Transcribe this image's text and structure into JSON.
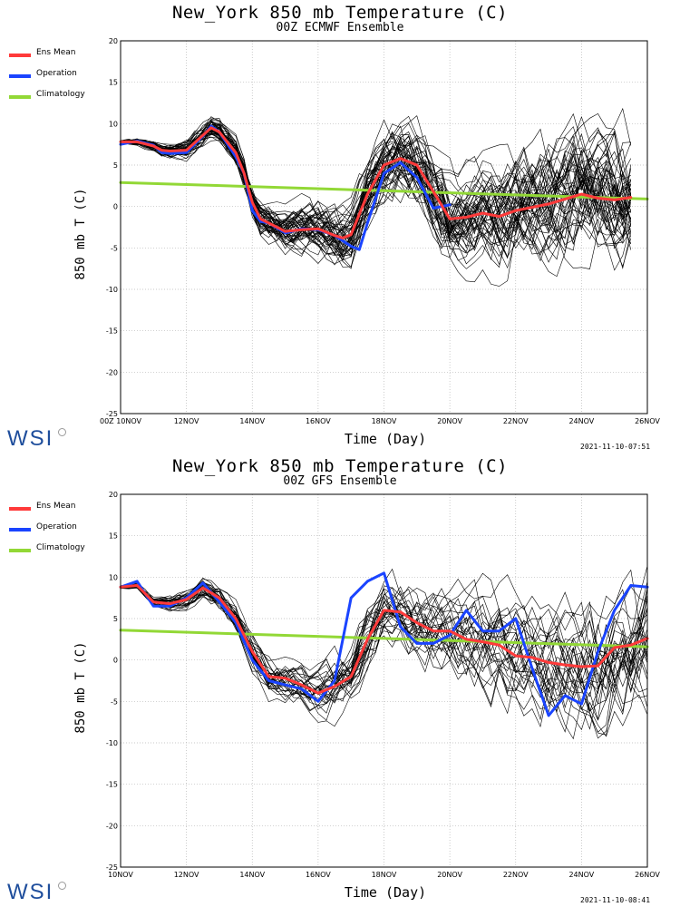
{
  "legend": {
    "items": [
      {
        "label": "Ens Mean",
        "color": "#ff3a3a"
      },
      {
        "label": "Operation",
        "color": "#1a44ff"
      },
      {
        "label": "Climatology",
        "color": "#92d836"
      }
    ]
  },
  "logo_text": "WSI",
  "chart_data": [
    {
      "type": "line",
      "title": "New_York 850 mb Temperature (C)",
      "subtitle": "00Z ECMWF Ensemble",
      "xlabel": "Time (Day)",
      "ylabel": "850 mb T (C)",
      "timestamp": "2021-11-10-07:51",
      "xlim": [
        0,
        16
      ],
      "ylim": [
        -25,
        20
      ],
      "yticks": [
        -25,
        -20,
        -15,
        -10,
        -5,
        0,
        5,
        10,
        15,
        20
      ],
      "xtick_labels": [
        "00Z 10NOV",
        "12NOV",
        "14NOV",
        "16NOV",
        "18NOV",
        "20NOV",
        "22NOV",
        "24NOV",
        "26NOV"
      ],
      "xtick_days": [
        0,
        2,
        4,
        6,
        8,
        10,
        12,
        14,
        16
      ],
      "grid": "dotted",
      "series": [
        {
          "name": "Ens Mean",
          "color": "#ff3a3a",
          "x": [
            0,
            0.5,
            1,
            1.25,
            1.5,
            2,
            2.5,
            2.75,
            3,
            3.5,
            3.75,
            4,
            4.25,
            4.5,
            5,
            5.5,
            6,
            6.5,
            6.75,
            7,
            7.5,
            8,
            8.5,
            9,
            9.5,
            10,
            10.5,
            11,
            11.5,
            12,
            13,
            14,
            14.5,
            15,
            15.5
          ],
          "y": [
            7.8,
            7.8,
            7.3,
            6.8,
            6.7,
            6.8,
            8.6,
            9.5,
            9,
            6.5,
            4,
            0.5,
            -1.5,
            -2,
            -3,
            -2.8,
            -2.7,
            -3.5,
            -3.8,
            -3.4,
            1.5,
            5,
            5.8,
            5,
            1.8,
            -1.5,
            -1.3,
            -0.8,
            -1.2,
            -0.5,
            0.3,
            1.5,
            1,
            0.8,
            1.1
          ]
        },
        {
          "name": "Operation",
          "color": "#1a44ff",
          "x": [
            0,
            0.5,
            1,
            1.25,
            1.5,
            2,
            2.5,
            2.75,
            3,
            3.5,
            3.75,
            4,
            4.25,
            4.5,
            5,
            5.5,
            6,
            6.5,
            7,
            7.25,
            7.5,
            8,
            8.5,
            9,
            9.5,
            10
          ],
          "y": [
            7.5,
            7.9,
            7.4,
            6.5,
            6.4,
            6.5,
            8.5,
            9.7,
            9,
            6,
            4,
            -0.5,
            -1.8,
            -2,
            -3.2,
            -2.7,
            -2.8,
            -3.5,
            -4.8,
            -5.2,
            -2,
            4,
            5.3,
            3.5,
            -0.2,
            0.2
          ]
        },
        {
          "name": "Climatology",
          "color": "#92d836",
          "x": [
            0,
            4,
            8,
            12,
            16
          ],
          "y": [
            2.9,
            2.4,
            1.9,
            1.4,
            0.9
          ]
        }
      ]
    },
    {
      "type": "line",
      "title": "New_York 850 mb Temperature (C)",
      "subtitle": "00Z GFS Ensemble",
      "xlabel": "Time (Day)",
      "ylabel": "850 mb T (C)",
      "timestamp": "2021-11-10-08:41",
      "xlim": [
        0,
        16
      ],
      "ylim": [
        -25,
        20
      ],
      "yticks": [
        -25,
        -20,
        -15,
        -10,
        -5,
        0,
        5,
        10,
        15,
        20
      ],
      "xtick_labels": [
        "10NOV",
        "12NOV",
        "14NOV",
        "16NOV",
        "18NOV",
        "20NOV",
        "22NOV",
        "24NOV",
        "26NOV"
      ],
      "xtick_days": [
        0,
        2,
        4,
        6,
        8,
        10,
        12,
        14,
        16
      ],
      "grid": "dotted",
      "series": [
        {
          "name": "Ens Mean",
          "color": "#ff3a3a",
          "x": [
            0,
            0.5,
            1,
            1.5,
            2,
            2.5,
            3,
            3.5,
            4,
            4.5,
            5,
            5.5,
            6,
            6.5,
            7,
            7.5,
            8,
            8.5,
            9,
            9.5,
            10,
            10.5,
            11,
            11.5,
            12,
            12.5,
            13,
            13.5,
            14,
            14.5,
            15,
            15.5,
            16
          ],
          "y": [
            8.8,
            9,
            7,
            6.8,
            7.3,
            8.7,
            7.5,
            5,
            1,
            -2,
            -2.2,
            -3,
            -4,
            -3.2,
            -2,
            2.5,
            6,
            5.8,
            4.5,
            3.5,
            3.5,
            2.5,
            2.2,
            1.8,
            0.5,
            0.3,
            -0.3,
            -0.6,
            -0.8,
            -0.7,
            1.5,
            1.8,
            2.6
          ]
        },
        {
          "name": "Operation",
          "color": "#1a44ff",
          "x": [
            0,
            0.5,
            1,
            1.5,
            2,
            2.5,
            3,
            3.5,
            4,
            4.5,
            5,
            5.5,
            6,
            6.5,
            7,
            7.5,
            8,
            8.5,
            9,
            9.5,
            10,
            10.5,
            11,
            11.5,
            12,
            12.5,
            13,
            13.5,
            14,
            14.5,
            15,
            15.5,
            16
          ],
          "y": [
            8.8,
            9.5,
            6.5,
            6.5,
            7.5,
            9.3,
            7,
            4.5,
            0,
            -2.5,
            -3,
            -3.5,
            -5,
            -2.5,
            7.5,
            9.5,
            10.5,
            4,
            2,
            2,
            3,
            6,
            3.5,
            3.5,
            5,
            -1,
            -6.7,
            -4.3,
            -5.3,
            1,
            6,
            9,
            8.8
          ]
        },
        {
          "name": "Climatology",
          "color": "#92d836",
          "x": [
            0,
            4,
            8,
            12,
            16
          ],
          "y": [
            3.6,
            3.1,
            2.6,
            2.1,
            1.6
          ]
        }
      ]
    }
  ]
}
